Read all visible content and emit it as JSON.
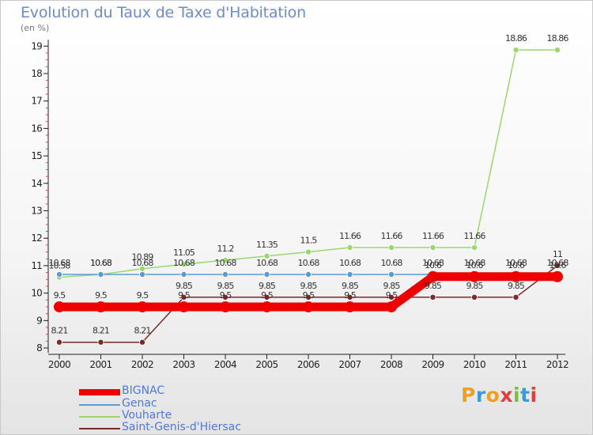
{
  "header": {
    "title": "Evolution du Taux de Taxe d'Habitation",
    "unit": "(en %)"
  },
  "logo": {
    "text": "Proxiti"
  },
  "chart_data": {
    "type": "line",
    "title": "Evolution du Taux de Taxe d'Habitation",
    "ylabel": "(en %)",
    "xlabel": "",
    "x": [
      "2000",
      "2001",
      "2002",
      "2003",
      "2004",
      "2005",
      "2006",
      "2007",
      "2008",
      "2009",
      "2010",
      "2011",
      "2012"
    ],
    "ylim": [
      8,
      19
    ],
    "yticks": [
      "8",
      "9",
      "10",
      "11",
      "12",
      "13",
      "14",
      "15",
      "16",
      "17",
      "18",
      "19"
    ],
    "grid": false,
    "legend_position": "bottom-left",
    "series": [
      {
        "name": "BIGNAC",
        "color": "#ee0000",
        "values": [
          9.5,
          9.5,
          9.5,
          9.5,
          9.5,
          9.5,
          9.5,
          9.5,
          9.5,
          10.6,
          10.6,
          10.6,
          10.6
        ],
        "labels": [
          "9.5",
          "9.5",
          "9.5",
          "9.5",
          "9.5",
          "9.5",
          "9.5",
          "9.5",
          "9.5",
          "10.6",
          "10.6",
          "10.6",
          "10.6"
        ]
      },
      {
        "name": "Genac",
        "color": "#5b9bd5",
        "values": [
          10.68,
          10.68,
          10.68,
          10.68,
          10.68,
          10.68,
          10.68,
          10.68,
          10.68,
          10.68,
          10.68,
          10.68,
          10.68
        ],
        "labels": [
          "10.68",
          "10.68",
          "10.68",
          "10.68",
          "10.68",
          "10.68",
          "10.68",
          "10.68",
          "10.68",
          "10.68",
          "10.68",
          "10.68",
          "10.68"
        ]
      },
      {
        "name": "Vouharte",
        "color": "#9ad86e",
        "values": [
          10.58,
          10.68,
          10.89,
          11.05,
          11.2,
          11.35,
          11.5,
          11.66,
          11.66,
          11.66,
          11.66,
          18.86,
          18.86
        ],
        "labels": [
          "10.58",
          "10.68",
          "10.89",
          "11.05",
          "11.2",
          "11.35",
          "11.5",
          "11.66",
          "11.66",
          "11.66",
          "11.66",
          "18.86",
          "18.86"
        ]
      },
      {
        "name": "Saint-Genis-d'Hiersac",
        "color": "#7a2828",
        "values": [
          8.21,
          8.21,
          8.21,
          9.85,
          9.85,
          9.85,
          9.85,
          9.85,
          9.85,
          9.85,
          9.85,
          9.85,
          11
        ],
        "labels": [
          "8.21",
          "8.21",
          "8.21",
          "9.85",
          "9.85",
          "9.85",
          "9.85",
          "9.85",
          "9.85",
          "9.85",
          "9.85",
          "9.85",
          "11"
        ]
      }
    ]
  }
}
